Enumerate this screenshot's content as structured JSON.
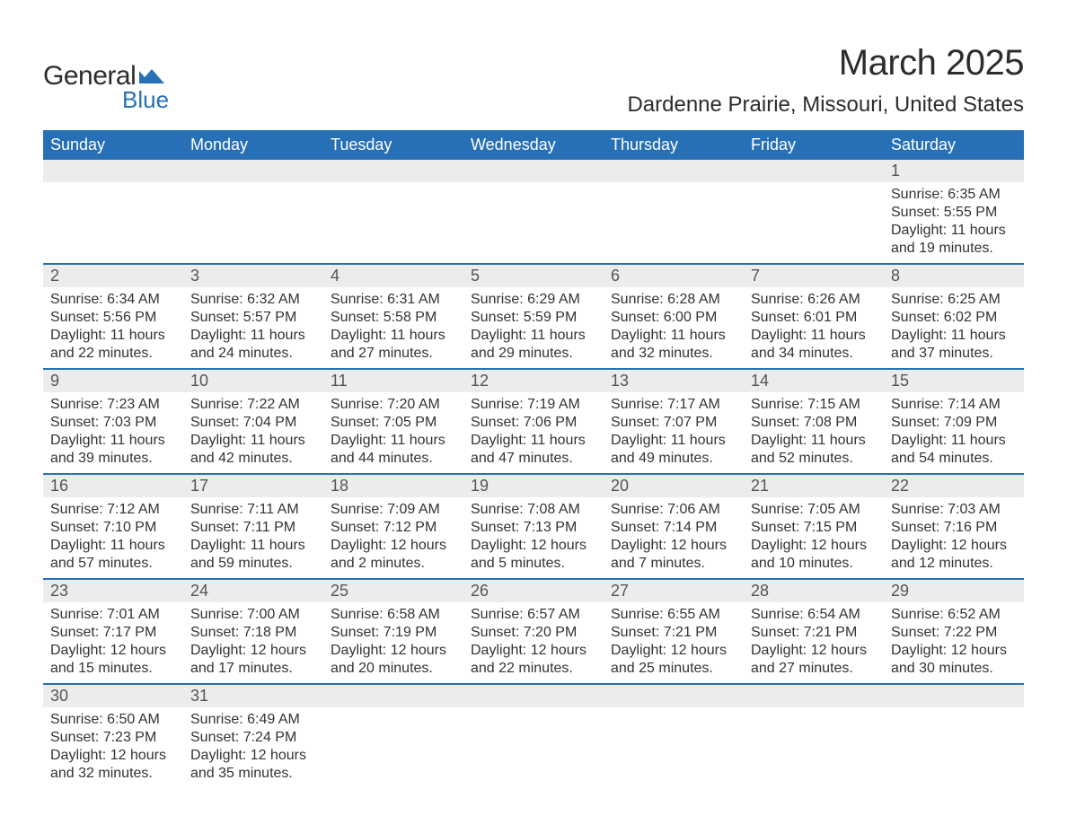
{
  "logo": {
    "text1": "General",
    "text2": "Blue",
    "shape_color": "#2770b5"
  },
  "title": {
    "month": "March 2025",
    "location": "Dardenne Prairie, Missouri, United States"
  },
  "columns": [
    "Sunday",
    "Monday",
    "Tuesday",
    "Wednesday",
    "Thursday",
    "Friday",
    "Saturday"
  ],
  "colors": {
    "header_bg": "#2770b5",
    "header_fg": "#ffffff",
    "daynum_bg": "#ececec",
    "daynum_fg": "#555555",
    "body_fg": "#333333",
    "row_border": "#2770b5"
  },
  "weeks": [
    [
      {
        "day": ""
      },
      {
        "day": ""
      },
      {
        "day": ""
      },
      {
        "day": ""
      },
      {
        "day": ""
      },
      {
        "day": ""
      },
      {
        "day": "1",
        "sunrise": "Sunrise: 6:35 AM",
        "sunset": "Sunset: 5:55 PM",
        "daylight1": "Daylight: 11 hours",
        "daylight2": "and 19 minutes."
      }
    ],
    [
      {
        "day": "2",
        "sunrise": "Sunrise: 6:34 AM",
        "sunset": "Sunset: 5:56 PM",
        "daylight1": "Daylight: 11 hours",
        "daylight2": "and 22 minutes."
      },
      {
        "day": "3",
        "sunrise": "Sunrise: 6:32 AM",
        "sunset": "Sunset: 5:57 PM",
        "daylight1": "Daylight: 11 hours",
        "daylight2": "and 24 minutes."
      },
      {
        "day": "4",
        "sunrise": "Sunrise: 6:31 AM",
        "sunset": "Sunset: 5:58 PM",
        "daylight1": "Daylight: 11 hours",
        "daylight2": "and 27 minutes."
      },
      {
        "day": "5",
        "sunrise": "Sunrise: 6:29 AM",
        "sunset": "Sunset: 5:59 PM",
        "daylight1": "Daylight: 11 hours",
        "daylight2": "and 29 minutes."
      },
      {
        "day": "6",
        "sunrise": "Sunrise: 6:28 AM",
        "sunset": "Sunset: 6:00 PM",
        "daylight1": "Daylight: 11 hours",
        "daylight2": "and 32 minutes."
      },
      {
        "day": "7",
        "sunrise": "Sunrise: 6:26 AM",
        "sunset": "Sunset: 6:01 PM",
        "daylight1": "Daylight: 11 hours",
        "daylight2": "and 34 minutes."
      },
      {
        "day": "8",
        "sunrise": "Sunrise: 6:25 AM",
        "sunset": "Sunset: 6:02 PM",
        "daylight1": "Daylight: 11 hours",
        "daylight2": "and 37 minutes."
      }
    ],
    [
      {
        "day": "9",
        "sunrise": "Sunrise: 7:23 AM",
        "sunset": "Sunset: 7:03 PM",
        "daylight1": "Daylight: 11 hours",
        "daylight2": "and 39 minutes."
      },
      {
        "day": "10",
        "sunrise": "Sunrise: 7:22 AM",
        "sunset": "Sunset: 7:04 PM",
        "daylight1": "Daylight: 11 hours",
        "daylight2": "and 42 minutes."
      },
      {
        "day": "11",
        "sunrise": "Sunrise: 7:20 AM",
        "sunset": "Sunset: 7:05 PM",
        "daylight1": "Daylight: 11 hours",
        "daylight2": "and 44 minutes."
      },
      {
        "day": "12",
        "sunrise": "Sunrise: 7:19 AM",
        "sunset": "Sunset: 7:06 PM",
        "daylight1": "Daylight: 11 hours",
        "daylight2": "and 47 minutes."
      },
      {
        "day": "13",
        "sunrise": "Sunrise: 7:17 AM",
        "sunset": "Sunset: 7:07 PM",
        "daylight1": "Daylight: 11 hours",
        "daylight2": "and 49 minutes."
      },
      {
        "day": "14",
        "sunrise": "Sunrise: 7:15 AM",
        "sunset": "Sunset: 7:08 PM",
        "daylight1": "Daylight: 11 hours",
        "daylight2": "and 52 minutes."
      },
      {
        "day": "15",
        "sunrise": "Sunrise: 7:14 AM",
        "sunset": "Sunset: 7:09 PM",
        "daylight1": "Daylight: 11 hours",
        "daylight2": "and 54 minutes."
      }
    ],
    [
      {
        "day": "16",
        "sunrise": "Sunrise: 7:12 AM",
        "sunset": "Sunset: 7:10 PM",
        "daylight1": "Daylight: 11 hours",
        "daylight2": "and 57 minutes."
      },
      {
        "day": "17",
        "sunrise": "Sunrise: 7:11 AM",
        "sunset": "Sunset: 7:11 PM",
        "daylight1": "Daylight: 11 hours",
        "daylight2": "and 59 minutes."
      },
      {
        "day": "18",
        "sunrise": "Sunrise: 7:09 AM",
        "sunset": "Sunset: 7:12 PM",
        "daylight1": "Daylight: 12 hours",
        "daylight2": "and 2 minutes."
      },
      {
        "day": "19",
        "sunrise": "Sunrise: 7:08 AM",
        "sunset": "Sunset: 7:13 PM",
        "daylight1": "Daylight: 12 hours",
        "daylight2": "and 5 minutes."
      },
      {
        "day": "20",
        "sunrise": "Sunrise: 7:06 AM",
        "sunset": "Sunset: 7:14 PM",
        "daylight1": "Daylight: 12 hours",
        "daylight2": "and 7 minutes."
      },
      {
        "day": "21",
        "sunrise": "Sunrise: 7:05 AM",
        "sunset": "Sunset: 7:15 PM",
        "daylight1": "Daylight: 12 hours",
        "daylight2": "and 10 minutes."
      },
      {
        "day": "22",
        "sunrise": "Sunrise: 7:03 AM",
        "sunset": "Sunset: 7:16 PM",
        "daylight1": "Daylight: 12 hours",
        "daylight2": "and 12 minutes."
      }
    ],
    [
      {
        "day": "23",
        "sunrise": "Sunrise: 7:01 AM",
        "sunset": "Sunset: 7:17 PM",
        "daylight1": "Daylight: 12 hours",
        "daylight2": "and 15 minutes."
      },
      {
        "day": "24",
        "sunrise": "Sunrise: 7:00 AM",
        "sunset": "Sunset: 7:18 PM",
        "daylight1": "Daylight: 12 hours",
        "daylight2": "and 17 minutes."
      },
      {
        "day": "25",
        "sunrise": "Sunrise: 6:58 AM",
        "sunset": "Sunset: 7:19 PM",
        "daylight1": "Daylight: 12 hours",
        "daylight2": "and 20 minutes."
      },
      {
        "day": "26",
        "sunrise": "Sunrise: 6:57 AM",
        "sunset": "Sunset: 7:20 PM",
        "daylight1": "Daylight: 12 hours",
        "daylight2": "and 22 minutes."
      },
      {
        "day": "27",
        "sunrise": "Sunrise: 6:55 AM",
        "sunset": "Sunset: 7:21 PM",
        "daylight1": "Daylight: 12 hours",
        "daylight2": "and 25 minutes."
      },
      {
        "day": "28",
        "sunrise": "Sunrise: 6:54 AM",
        "sunset": "Sunset: 7:21 PM",
        "daylight1": "Daylight: 12 hours",
        "daylight2": "and 27 minutes."
      },
      {
        "day": "29",
        "sunrise": "Sunrise: 6:52 AM",
        "sunset": "Sunset: 7:22 PM",
        "daylight1": "Daylight: 12 hours",
        "daylight2": "and 30 minutes."
      }
    ],
    [
      {
        "day": "30",
        "sunrise": "Sunrise: 6:50 AM",
        "sunset": "Sunset: 7:23 PM",
        "daylight1": "Daylight: 12 hours",
        "daylight2": "and 32 minutes."
      },
      {
        "day": "31",
        "sunrise": "Sunrise: 6:49 AM",
        "sunset": "Sunset: 7:24 PM",
        "daylight1": "Daylight: 12 hours",
        "daylight2": "and 35 minutes."
      },
      {
        "day": ""
      },
      {
        "day": ""
      },
      {
        "day": ""
      },
      {
        "day": ""
      },
      {
        "day": ""
      }
    ]
  ]
}
